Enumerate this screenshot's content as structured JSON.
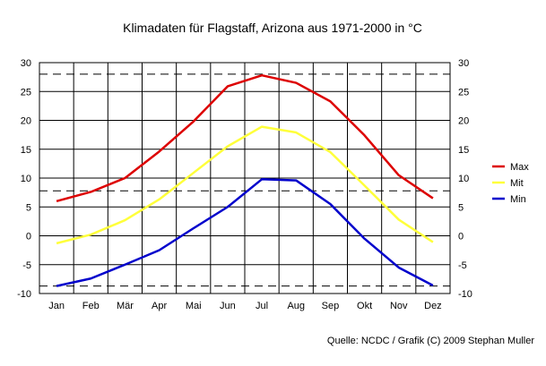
{
  "chart_data": {
    "type": "line",
    "title": "Klimadaten für Flagstaff, Arizona aus 1971-2000 in °C",
    "categories": [
      "Jan",
      "Feb",
      "Mär",
      "Apr",
      "Mai",
      "Jun",
      "Jul",
      "Aug",
      "Sep",
      "Okt",
      "Nov",
      "Dez"
    ],
    "ylim": [
      -10,
      30
    ],
    "yticks": [
      "30",
      "25",
      "20",
      "15",
      "10",
      "5",
      "0",
      "-5",
      "-10"
    ],
    "grid": true,
    "reference_lines": [
      28,
      7.8,
      -8.7
    ],
    "legend_position": "right",
    "series": [
      {
        "name": "Max",
        "color": "#dd0000",
        "values": [
          6.0,
          7.6,
          10.0,
          14.6,
          19.8,
          25.9,
          27.8,
          26.5,
          23.3,
          17.4,
          10.5,
          6.5
        ]
      },
      {
        "name": "Mit",
        "color": "#ffff3a",
        "values": [
          -1.3,
          0.2,
          2.7,
          6.3,
          10.9,
          15.5,
          18.9,
          17.9,
          14.5,
          8.7,
          2.8,
          -1.1
        ]
      },
      {
        "name": "Min",
        "color": "#0000cc",
        "values": [
          -8.7,
          -7.4,
          -5.0,
          -2.5,
          1.3,
          5.0,
          9.8,
          9.6,
          5.5,
          -0.5,
          -5.5,
          -8.6
        ]
      }
    ],
    "source": "Quelle: NCDC / Grafik (C) 2009 Stephan Muller"
  }
}
